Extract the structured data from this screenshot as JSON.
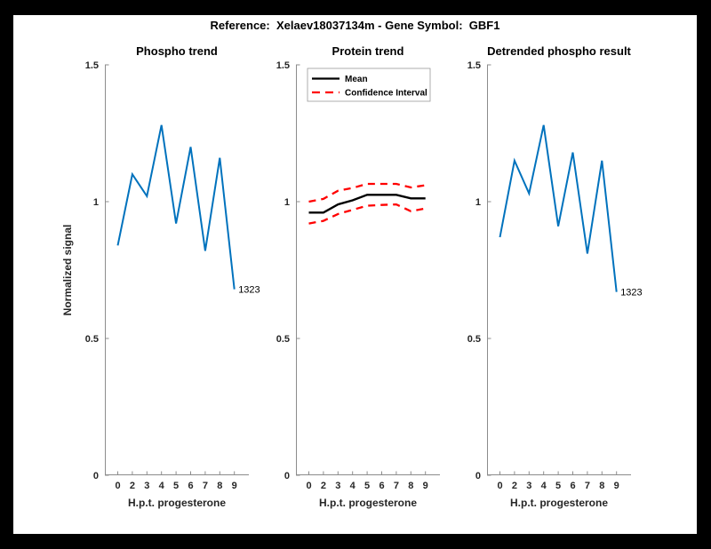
{
  "figure_title": "Reference:  Xelaev18037134m - Gene Symbol:  GBF1",
  "palette": {
    "background": "#000000",
    "figure_background": "#ffffff",
    "blue": "#0072BD",
    "red": "#ff0000",
    "black": "#000000",
    "axis_line": "#8c8c8c",
    "tick_text": "#262626"
  },
  "axes_common": {
    "xlabel": "H.p.t. progesterone",
    "xticklabels": [
      "0",
      "2",
      "3",
      "4",
      "5",
      "6",
      "7",
      "8",
      "9"
    ],
    "yticks": [
      0,
      0.5,
      1,
      1.5
    ],
    "yticklabels": [
      "0",
      "0.5",
      "1",
      "1.5"
    ],
    "ylim": [
      0,
      1.5
    ],
    "grid": false
  },
  "chart_data": [
    {
      "type": "line",
      "title": "Phospho trend",
      "ylabel": "Normalized signal",
      "xlabel": "H.p.t. progesterone",
      "x": [
        0,
        2,
        3,
        4,
        5,
        6,
        7,
        8,
        9
      ],
      "ylim": [
        0,
        1.5
      ],
      "series": [
        {
          "name": "phospho-signal",
          "color": "#0072BD",
          "dash": false,
          "width": 2,
          "values": [
            0.84,
            1.1,
            1.02,
            1.28,
            0.92,
            1.2,
            0.82,
            1.16,
            0.68
          ]
        }
      ],
      "end_label": "1323"
    },
    {
      "type": "line",
      "title": "Protein trend",
      "ylabel": "",
      "xlabel": "H.p.t. progesterone",
      "x": [
        0,
        2,
        3,
        4,
        5,
        6,
        7,
        8,
        9
      ],
      "ylim": [
        0,
        1.5
      ],
      "legend": {
        "position": "northwest",
        "items": [
          {
            "label": "Mean",
            "color": "#000000",
            "dash": false
          },
          {
            "label": "Confidence Interval",
            "color": "#ff0000",
            "dash": true
          }
        ]
      },
      "series": [
        {
          "name": "ci-upper",
          "color": "#ff0000",
          "dash": true,
          "width": 2.3,
          "values": [
            1.0,
            1.01,
            1.04,
            1.05,
            1.065,
            1.065,
            1.065,
            1.052,
            1.06
          ]
        },
        {
          "name": "ci-lower",
          "color": "#ff0000",
          "dash": true,
          "width": 2.3,
          "values": [
            0.92,
            0.93,
            0.955,
            0.97,
            0.985,
            0.988,
            0.99,
            0.965,
            0.975
          ]
        },
        {
          "name": "mean",
          "color": "#000000",
          "dash": false,
          "width": 2.4,
          "values": [
            0.96,
            0.96,
            0.99,
            1.005,
            1.025,
            1.025,
            1.025,
            1.012,
            1.012
          ]
        }
      ],
      "end_label": ""
    },
    {
      "type": "line",
      "title": "Detrended phospho result",
      "ylabel": "",
      "xlabel": "H.p.t. progesterone",
      "x": [
        0,
        2,
        3,
        4,
        5,
        6,
        7,
        8,
        9
      ],
      "ylim": [
        0,
        1.5
      ],
      "series": [
        {
          "name": "detrended-phospho-signal",
          "color": "#0072BD",
          "dash": false,
          "width": 2,
          "values": [
            0.87,
            1.15,
            1.03,
            1.28,
            0.91,
            1.18,
            0.81,
            1.15,
            0.67
          ]
        }
      ],
      "end_label": "1323"
    }
  ]
}
